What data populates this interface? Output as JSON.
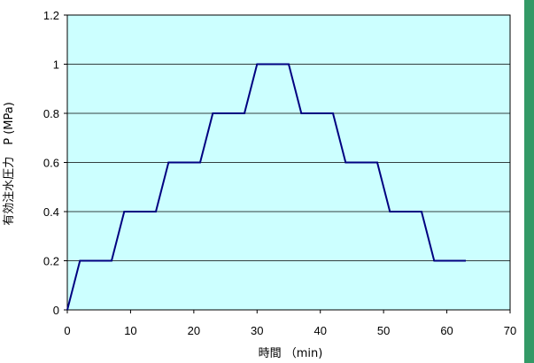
{
  "chart_data": {
    "type": "line",
    "title": "",
    "xlabel": "時間 （min)",
    "ylabel": "有効注水圧力　P (MPa)",
    "xlim": [
      0,
      70
    ],
    "ylim": [
      0,
      1.2
    ],
    "x_ticks": [
      "0",
      "10",
      "20",
      "30",
      "40",
      "50",
      "60",
      "70"
    ],
    "y_ticks": [
      "0",
      "0.2",
      "0.4",
      "0.6",
      "0.8",
      "1",
      "1.2"
    ],
    "grid": "horizontal",
    "legend": "none",
    "series": [
      {
        "x": [
          0,
          2,
          7,
          9,
          14,
          16,
          21,
          23,
          28,
          30,
          35,
          37,
          42,
          44,
          49,
          51,
          56,
          58,
          63
        ],
        "y": [
          0,
          0.2,
          0.2,
          0.4,
          0.4,
          0.6,
          0.6,
          0.8,
          0.8,
          1.0,
          1.0,
          0.8,
          0.8,
          0.6,
          0.6,
          0.4,
          0.4,
          0.2,
          0.2
        ]
      }
    ]
  },
  "colors": {
    "plot_background": "#ccffff",
    "line": "#000080",
    "grid": "#000000",
    "frame": "#000000",
    "side_bar": "#339966"
  }
}
